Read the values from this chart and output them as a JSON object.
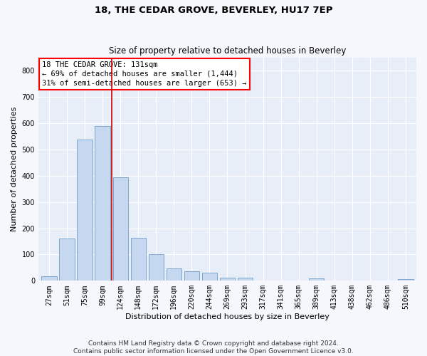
{
  "title": "18, THE CEDAR GROVE, BEVERLEY, HU17 7EP",
  "subtitle": "Size of property relative to detached houses in Beverley",
  "xlabel": "Distribution of detached houses by size in Beverley",
  "ylabel": "Number of detached properties",
  "bar_color": "#c5d8f0",
  "bar_edge_color": "#5a8fc2",
  "vline_color": "#cc0000",
  "categories": [
    "27sqm",
    "51sqm",
    "75sqm",
    "99sqm",
    "124sqm",
    "148sqm",
    "172sqm",
    "196sqm",
    "220sqm",
    "244sqm",
    "269sqm",
    "293sqm",
    "317sqm",
    "341sqm",
    "365sqm",
    "389sqm",
    "413sqm",
    "438sqm",
    "462sqm",
    "486sqm",
    "510sqm"
  ],
  "values": [
    17,
    162,
    538,
    590,
    393,
    165,
    100,
    48,
    35,
    30,
    13,
    11,
    0,
    0,
    0,
    8,
    0,
    0,
    0,
    0,
    7
  ],
  "ylim": [
    0,
    850
  ],
  "yticks": [
    0,
    100,
    200,
    300,
    400,
    500,
    600,
    700,
    800
  ],
  "annotation_line1": "18 THE CEDAR GROVE: 131sqm",
  "annotation_line2": "← 69% of detached houses are smaller (1,444)",
  "annotation_line3": "31% of semi-detached houses are larger (653) →",
  "bg_color": "#e8eef8",
  "grid_color": "#ffffff",
  "footer_text": "Contains HM Land Registry data © Crown copyright and database right 2024.\nContains public sector information licensed under the Open Government Licence v3.0.",
  "title_fontsize": 9.5,
  "subtitle_fontsize": 8.5,
  "axis_label_fontsize": 8,
  "tick_fontsize": 7,
  "annotation_fontsize": 7.5,
  "footer_fontsize": 6.5
}
